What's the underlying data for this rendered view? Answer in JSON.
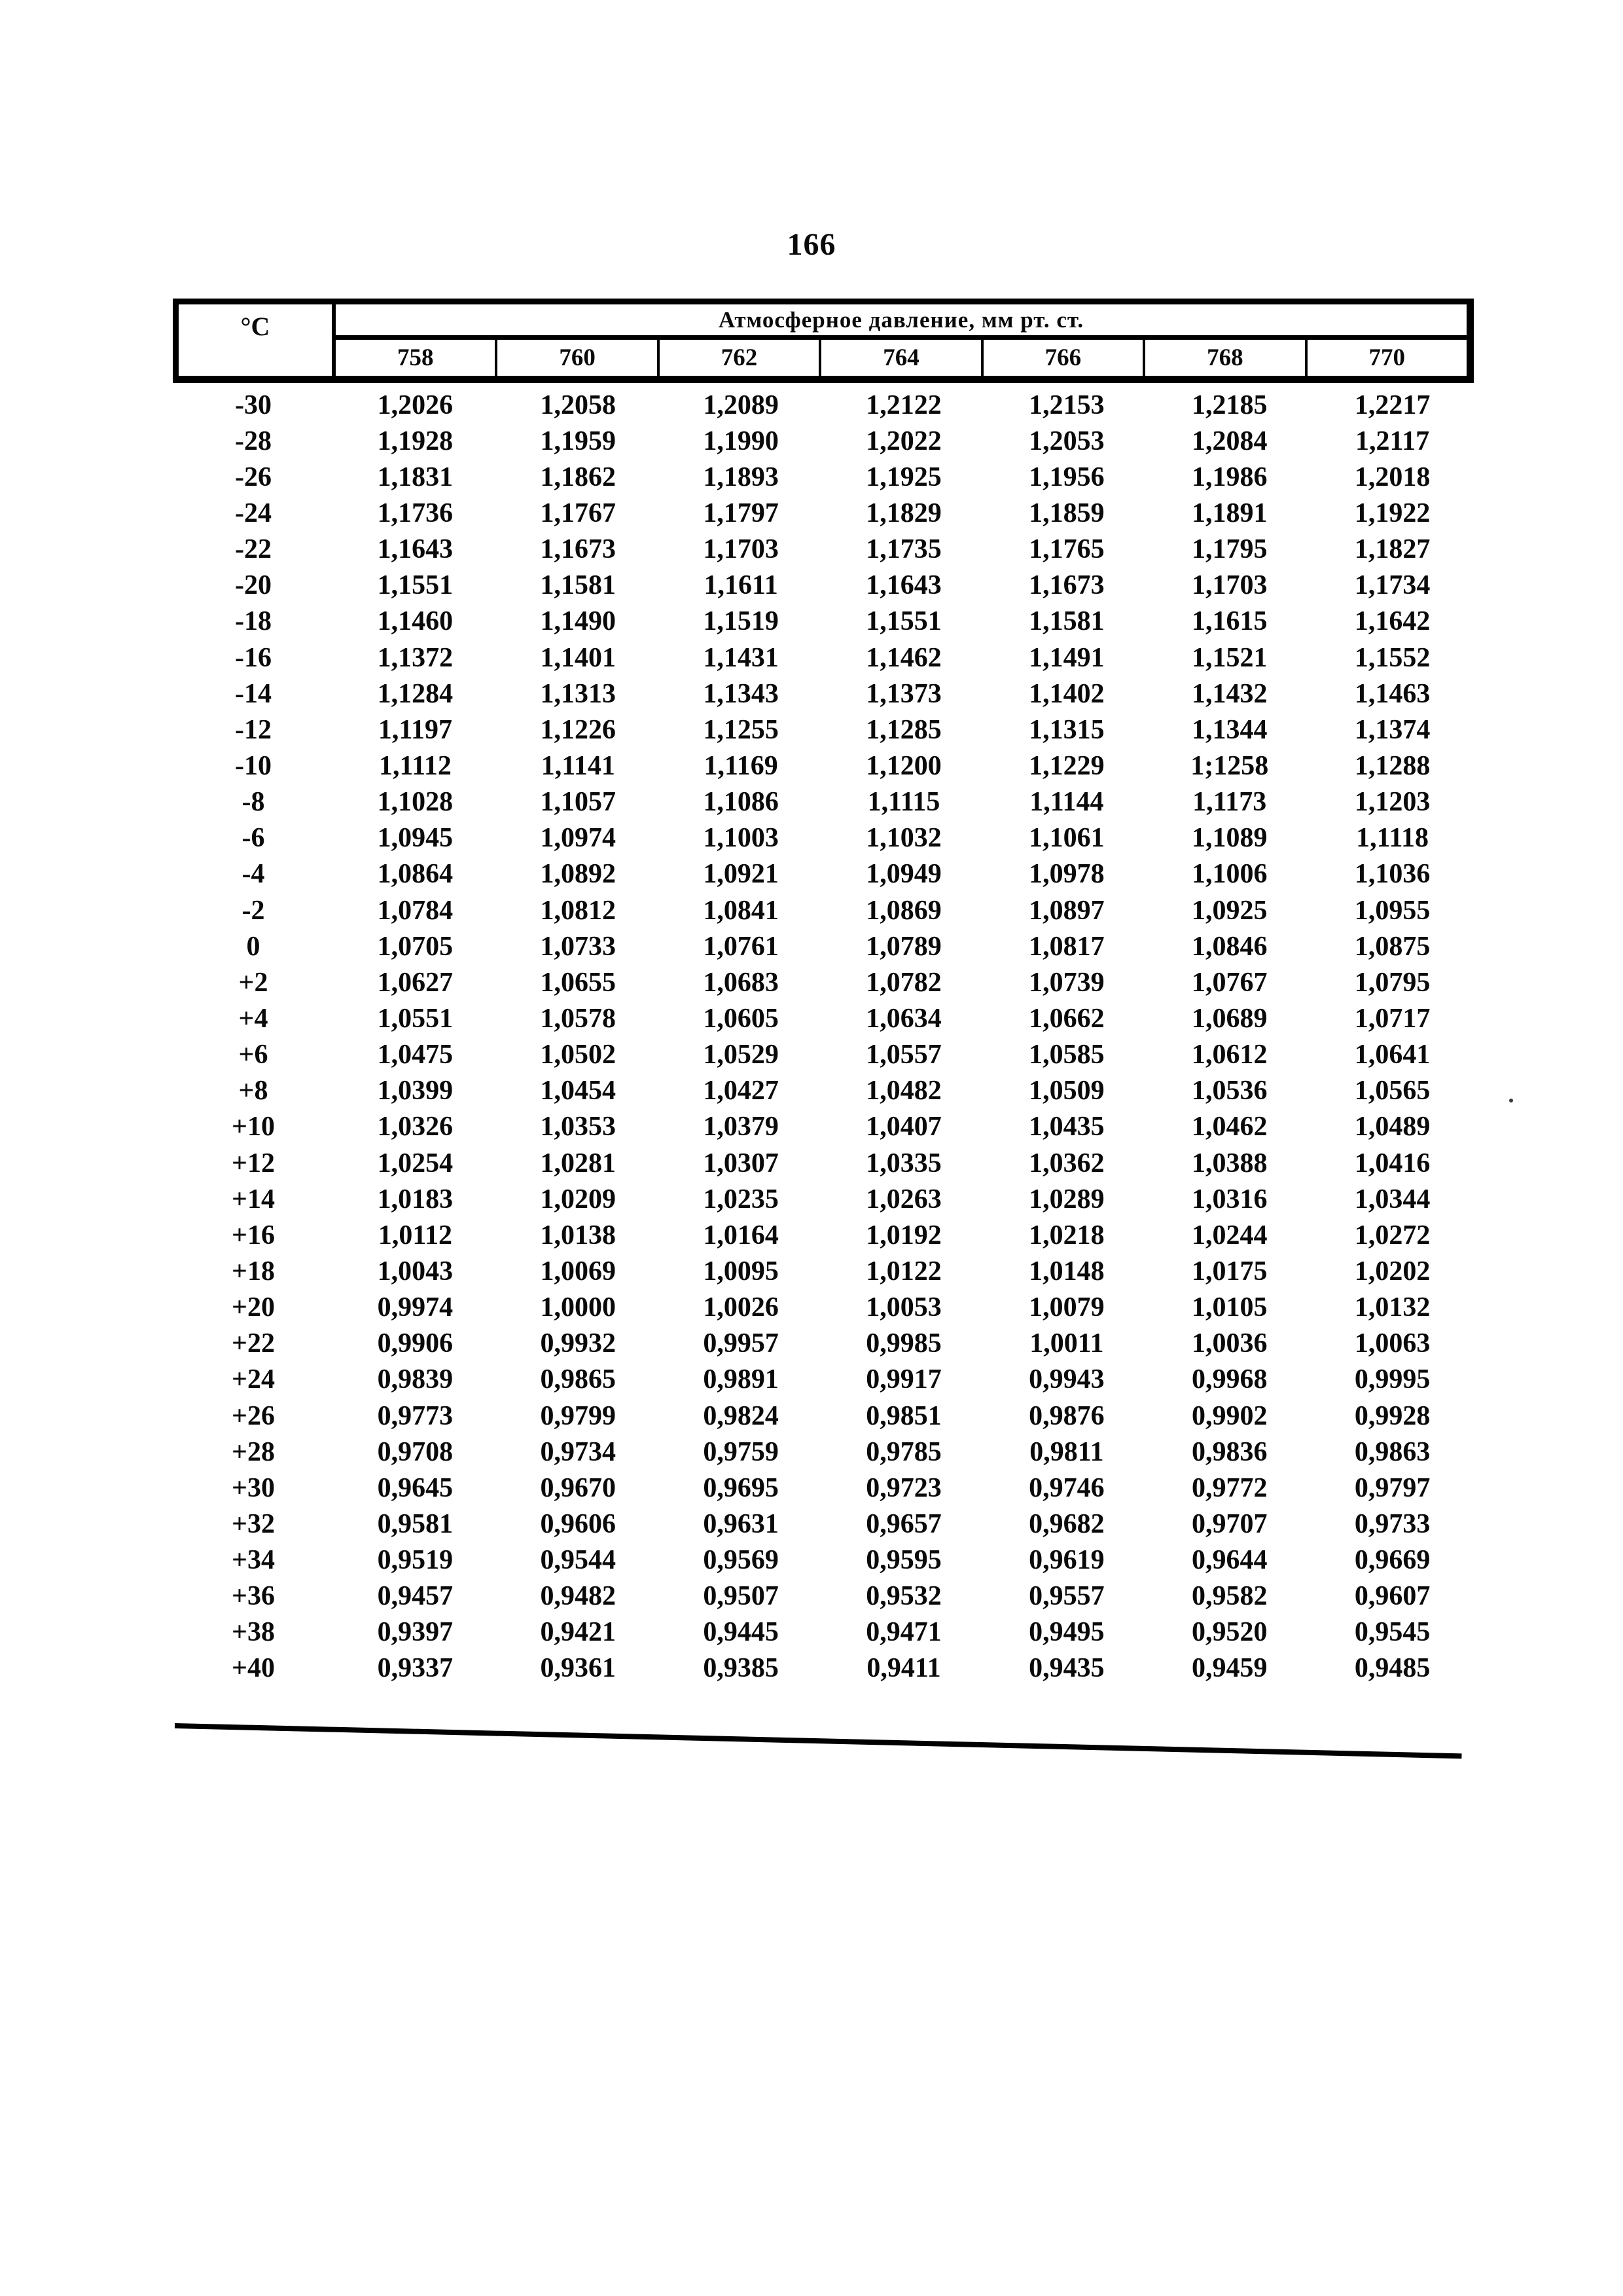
{
  "page": {
    "number": "166"
  },
  "table": {
    "temp_header": "°C",
    "pressure_header": "Атмосферное давление, мм рт. ст.",
    "pressure_columns": [
      "758",
      "760",
      "762",
      "764",
      "766",
      "768",
      "770"
    ],
    "rows": [
      {
        "t": "-30",
        "v": [
          "1,2026",
          "1,2058",
          "1,2089",
          "1,2122",
          "1,2153",
          "1,2185",
          "1,2217"
        ]
      },
      {
        "t": "-28",
        "v": [
          "1,1928",
          "1,1959",
          "1,1990",
          "1,2022",
          "1,2053",
          "1,2084",
          "1,2117"
        ]
      },
      {
        "t": "-26",
        "v": [
          "1,1831",
          "1,1862",
          "1,1893",
          "1,1925",
          "1,1956",
          "1,1986",
          "1,2018"
        ]
      },
      {
        "t": "-24",
        "v": [
          "1,1736",
          "1,1767",
          "1,1797",
          "1,1829",
          "1,1859",
          "1,1891",
          "1,1922"
        ]
      },
      {
        "t": "-22",
        "v": [
          "1,1643",
          "1,1673",
          "1,1703",
          "1,1735",
          "1,1765",
          "1,1795",
          "1,1827"
        ]
      },
      {
        "t": "-20",
        "v": [
          "1,1551",
          "1,1581",
          "1,1611",
          "1,1643",
          "1,1673",
          "1,1703",
          "1,1734"
        ]
      },
      {
        "t": "-18",
        "v": [
          "1,1460",
          "1,1490",
          "1,1519",
          "1,1551",
          "1,1581",
          "1,1615",
          "1,1642"
        ]
      },
      {
        "t": "-16",
        "v": [
          "1,1372",
          "1,1401",
          "1,1431",
          "1,1462",
          "1,1491",
          "1,1521",
          "1,1552"
        ]
      },
      {
        "t": "-14",
        "v": [
          "1,1284",
          "1,1313",
          "1,1343",
          "1,1373",
          "1,1402",
          "1,1432",
          "1,1463"
        ]
      },
      {
        "t": "-12",
        "v": [
          "1,1197",
          "1,1226",
          "1,1255",
          "1,1285",
          "1,1315",
          "1,1344",
          "1,1374"
        ]
      },
      {
        "t": "-10",
        "v": [
          "1,1112",
          "1,1141",
          "1,1169",
          "1,1200",
          "1,1229",
          "1;1258",
          "1,1288"
        ]
      },
      {
        "t": "-8",
        "v": [
          "1,1028",
          "1,1057",
          "1,1086",
          "1,1115",
          "1,1144",
          "1,1173",
          "1,1203"
        ]
      },
      {
        "t": "-6",
        "v": [
          "1,0945",
          "1,0974",
          "1,1003",
          "1,1032",
          "1,1061",
          "1,1089",
          "1,1118"
        ]
      },
      {
        "t": "-4",
        "v": [
          "1,0864",
          "1,0892",
          "1,0921",
          "1,0949",
          "1,0978",
          "1,1006",
          "1,1036"
        ]
      },
      {
        "t": "-2",
        "v": [
          "1,0784",
          "1,0812",
          "1,0841",
          "1,0869",
          "1,0897",
          "1,0925",
          "1,0955"
        ]
      },
      {
        "t": "0",
        "v": [
          "1,0705",
          "1,0733",
          "1,0761",
          "1,0789",
          "1,0817",
          "1,0846",
          "1,0875"
        ]
      },
      {
        "t": "+2",
        "v": [
          "1,0627",
          "1,0655",
          "1,0683",
          "1,0782",
          "1,0739",
          "1,0767",
          "1,0795"
        ]
      },
      {
        "t": "+4",
        "v": [
          "1,0551",
          "1,0578",
          "1,0605",
          "1,0634",
          "1,0662",
          "1,0689",
          "1,0717"
        ]
      },
      {
        "t": "+6",
        "v": [
          "1,0475",
          "1,0502",
          "1,0529",
          "1,0557",
          "1,0585",
          "1,0612",
          "1,0641"
        ]
      },
      {
        "t": "+8",
        "v": [
          "1,0399",
          "1,0454",
          "1,0427",
          "1,0482",
          "1,0509",
          "1,0536",
          "1,0565"
        ]
      },
      {
        "t": "+10",
        "v": [
          "1,0326",
          "1,0353",
          "1,0379",
          "1,0407",
          "1,0435",
          "1,0462",
          "1,0489"
        ]
      },
      {
        "t": "+12",
        "v": [
          "1,0254",
          "1,0281",
          "1,0307",
          "1,0335",
          "1,0362",
          "1,0388",
          "1,0416"
        ]
      },
      {
        "t": "+14",
        "v": [
          "1,0183",
          "1,0209",
          "1,0235",
          "1,0263",
          "1,0289",
          "1,0316",
          "1,0344"
        ]
      },
      {
        "t": "+16",
        "v": [
          "1,0112",
          "1,0138",
          "1,0164",
          "1,0192",
          "1,0218",
          "1,0244",
          "1,0272"
        ]
      },
      {
        "t": "+18",
        "v": [
          "1,0043",
          "1,0069",
          "1,0095",
          "1,0122",
          "1,0148",
          "1,0175",
          "1,0202"
        ]
      },
      {
        "t": "+20",
        "v": [
          "0,9974",
          "1,0000",
          "1,0026",
          "1,0053",
          "1,0079",
          "1,0105",
          "1,0132"
        ]
      },
      {
        "t": "+22",
        "v": [
          "0,9906",
          "0,9932",
          "0,9957",
          "0,9985",
          "1,0011",
          "1,0036",
          "1,0063"
        ]
      },
      {
        "t": "+24",
        "v": [
          "0,9839",
          "0,9865",
          "0,9891",
          "0,9917",
          "0,9943",
          "0,9968",
          "0,9995"
        ]
      },
      {
        "t": "+26",
        "v": [
          "0,9773",
          "0,9799",
          "0,9824",
          "0,9851",
          "0,9876",
          "0,9902",
          "0,9928"
        ]
      },
      {
        "t": "+28",
        "v": [
          "0,9708",
          "0,9734",
          "0,9759",
          "0,9785",
          "0,9811",
          "0,9836",
          "0,9863"
        ]
      },
      {
        "t": "+30",
        "v": [
          "0,9645",
          "0,9670",
          "0,9695",
          "0,9723",
          "0,9746",
          "0,9772",
          "0,9797"
        ]
      },
      {
        "t": "+32",
        "v": [
          "0,9581",
          "0,9606",
          "0,9631",
          "0,9657",
          "0,9682",
          "0,9707",
          "0,9733"
        ]
      },
      {
        "t": "+34",
        "v": [
          "0,9519",
          "0,9544",
          "0,9569",
          "0,9595",
          "0,9619",
          "0,9644",
          "0,9669"
        ]
      },
      {
        "t": "+36",
        "v": [
          "0,9457",
          "0,9482",
          "0,9507",
          "0,9532",
          "0,9557",
          "0,9582",
          "0,9607"
        ]
      },
      {
        "t": "+38",
        "v": [
          "0,9397",
          "0,9421",
          "0,9445",
          "0,9471",
          "0,9495",
          "0,9520",
          "0,9545"
        ]
      },
      {
        "t": "+40",
        "v": [
          "0,9337",
          "0,9361",
          "0,9385",
          "0,9411",
          "0,9435",
          "0,9459",
          "0,9485"
        ]
      }
    ]
  }
}
